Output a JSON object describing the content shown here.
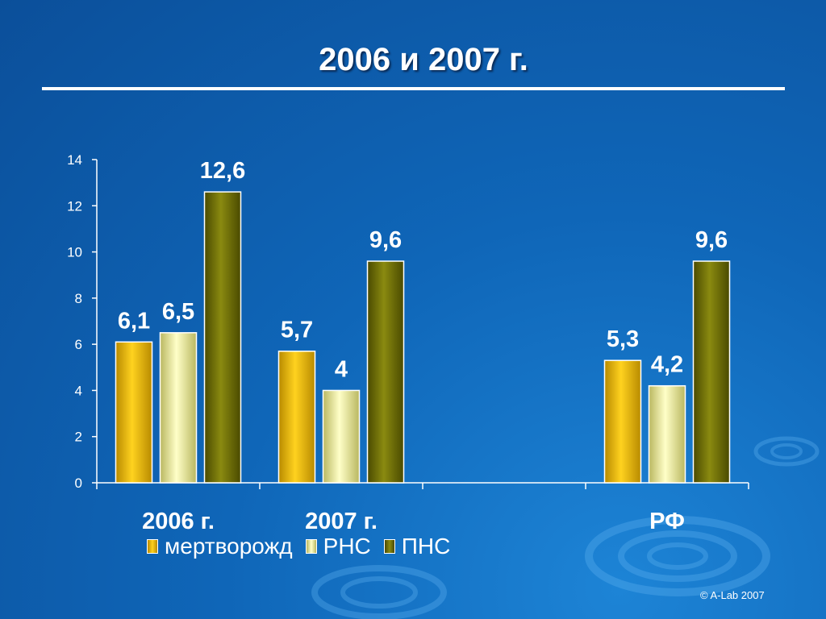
{
  "slide": {
    "title": "2006 и 2007 г.",
    "copyright": "© A-Lab 2007"
  },
  "colors": {
    "background": "#0f66b8",
    "series": [
      "#e6b800",
      "#f0ef9a",
      "#6b6b00"
    ]
  },
  "chart_data": {
    "type": "bar",
    "categories": [
      "2006 г.",
      "2007 г.",
      "",
      "РФ"
    ],
    "series": [
      {
        "name": "мертворожд",
        "values": [
          6.1,
          5.7,
          null,
          5.3
        ]
      },
      {
        "name": "РНС",
        "values": [
          6.5,
          4,
          null,
          4.2
        ]
      },
      {
        "name": "ПНС",
        "values": [
          12.6,
          9.6,
          null,
          9.6
        ]
      }
    ],
    "data_labels": [
      [
        "6,1",
        "5,7",
        null,
        "5,3"
      ],
      [
        "6,5",
        "4",
        null,
        "4,2"
      ],
      [
        "12,6",
        "9,6",
        null,
        "9,6"
      ]
    ],
    "y_ticks": [
      "0",
      "2",
      "4",
      "6",
      "8",
      "10",
      "12",
      "14"
    ],
    "ylim": [
      0,
      14
    ],
    "grid": false,
    "legend_position": "bottom",
    "title": "",
    "xlabel": "",
    "ylabel": ""
  }
}
